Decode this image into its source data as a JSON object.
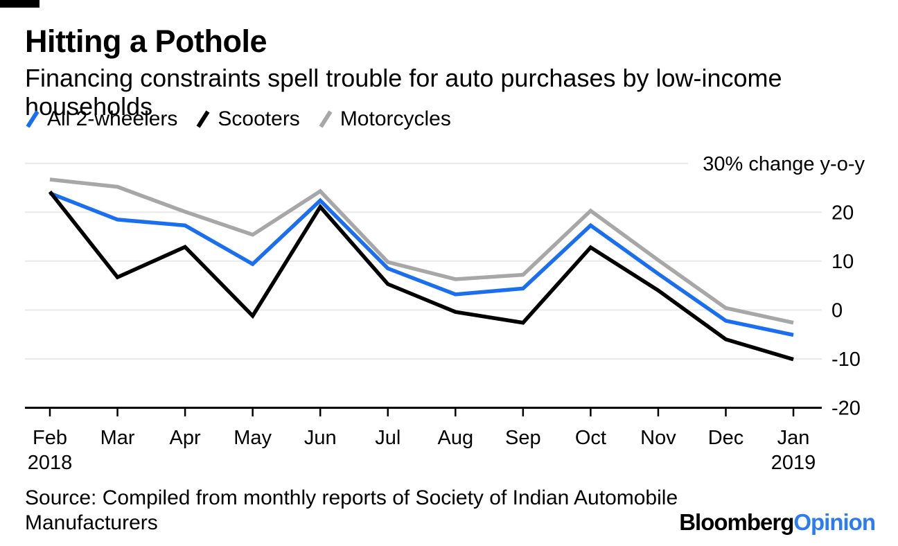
{
  "page": {
    "title": "Hitting a Pothole",
    "subtitle": "Financing constraints spell trouble for auto purchases by low-income households",
    "source": "Source: Compiled from monthly reports of Society of Indian Automobile Manufacturers",
    "logo": {
      "black": "Bloomberg",
      "blue": "Opinion",
      "blue_color": "#2b7bf2"
    }
  },
  "chart_data": {
    "type": "line",
    "title": "Hitting a Pothole",
    "subtitle": "Financing constraints spell trouble for auto purchases by low-income households",
    "xlabel": "",
    "ylabel": "% change y-o-y",
    "axis_title": {
      "value": 30,
      "label": "30% change y-o-y"
    },
    "categories": [
      "Feb",
      "Mar",
      "Apr",
      "May",
      "Jun",
      "Jul",
      "Aug",
      "Sep",
      "Oct",
      "Nov",
      "Dec",
      "Jan"
    ],
    "year_labels": [
      {
        "index": 0,
        "text": "2018"
      },
      {
        "index": 11,
        "text": "2019"
      }
    ],
    "ylim": [
      -20,
      30
    ],
    "grid": true,
    "gridline_values": [
      30,
      20,
      10,
      0,
      -10
    ],
    "ytick_labels": [
      {
        "value": 20,
        "label": "20"
      },
      {
        "value": 10,
        "label": "10"
      },
      {
        "value": 0,
        "label": "0"
      },
      {
        "value": -10,
        "label": "-10"
      },
      {
        "value": -20,
        "label": "-20"
      }
    ],
    "legend_position": "top-left",
    "colors": {
      "grid": "#e9e9e9",
      "axis": "#000000"
    },
    "series": [
      {
        "name": "All 2-wheelers",
        "color": "#1a6ff0",
        "z": 2,
        "values": [
          23.9,
          18.5,
          17.3,
          9.4,
          22.4,
          8.5,
          3.2,
          4.4,
          17.3,
          7.4,
          -2.2,
          -5.1
        ]
      },
      {
        "name": "Scooters",
        "color": "#000000",
        "z": 3,
        "values": [
          24.2,
          6.7,
          12.9,
          -1.2,
          21.1,
          5.3,
          -0.4,
          -2.6,
          12.8,
          4.0,
          -6.0,
          -10.1
        ]
      },
      {
        "name": "Motorcycles",
        "color": "#a7a7a7",
        "z": 1,
        "values": [
          26.7,
          25.2,
          20.1,
          15.4,
          24.3,
          9.8,
          6.3,
          7.2,
          20.3,
          10.2,
          0.4,
          -2.6
        ]
      }
    ]
  }
}
